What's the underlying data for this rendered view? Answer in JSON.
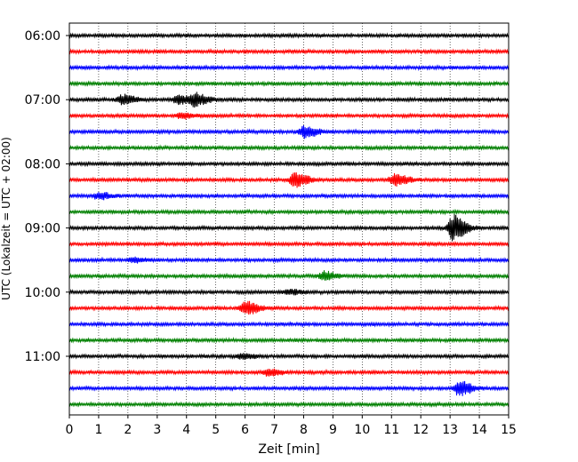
{
  "chart_data": {
    "type": "line",
    "title": "",
    "xlabel": "Zeit  [min]",
    "ylabel": "UTC (Lokalzeit = UTC + 02:00)",
    "xlim": [
      0,
      15
    ],
    "x_ticks": [
      0,
      1,
      2,
      3,
      4,
      5,
      6,
      7,
      8,
      9,
      10,
      11,
      12,
      13,
      14,
      15
    ],
    "x_tick_labels": [
      "0",
      "1",
      "2",
      "3",
      "4",
      "5",
      "6",
      "7",
      "8",
      "9",
      "10",
      "11",
      "12",
      "13",
      "14",
      "15"
    ],
    "y_tick_labels": [
      "06:00",
      "07:00",
      "08:00",
      "09:00",
      "10:00",
      "11:00"
    ],
    "x_grid": true,
    "trace_minutes": 15,
    "color_cycle": [
      "#000000",
      "#ff0000",
      "#0000ff",
      "#008000"
    ],
    "traces": [
      {
        "start": "06:00",
        "events": []
      },
      {
        "start": "06:15",
        "events": []
      },
      {
        "start": "06:30",
        "events": []
      },
      {
        "start": "06:45",
        "events": []
      },
      {
        "start": "07:00",
        "events": [
          {
            "minute": 1.8,
            "amplitude": 0.6
          },
          {
            "minute": 3.7,
            "amplitude": 0.5
          },
          {
            "minute": 4.3,
            "amplitude": 0.7
          }
        ]
      },
      {
        "start": "07:15",
        "events": [
          {
            "minute": 3.8,
            "amplitude": 0.3
          }
        ]
      },
      {
        "start": "07:30",
        "events": [
          {
            "minute": 8.0,
            "amplitude": 0.7
          }
        ]
      },
      {
        "start": "07:45",
        "events": []
      },
      {
        "start": "08:00",
        "events": []
      },
      {
        "start": "08:15",
        "events": [
          {
            "minute": 7.7,
            "amplitude": 0.9
          },
          {
            "minute": 11.1,
            "amplitude": 0.7
          }
        ]
      },
      {
        "start": "08:30",
        "events": [
          {
            "minute": 1.0,
            "amplitude": 0.4
          }
        ]
      },
      {
        "start": "08:45",
        "events": []
      },
      {
        "start": "09:00",
        "events": [
          {
            "minute": 13.1,
            "amplitude": 1.5
          }
        ]
      },
      {
        "start": "09:15",
        "events": []
      },
      {
        "start": "09:30",
        "events": [
          {
            "minute": 2.2,
            "amplitude": 0.3
          }
        ]
      },
      {
        "start": "09:45",
        "events": [
          {
            "minute": 8.7,
            "amplitude": 0.5
          }
        ]
      },
      {
        "start": "10:00",
        "events": [
          {
            "minute": 7.5,
            "amplitude": 0.3
          }
        ]
      },
      {
        "start": "10:15",
        "events": [
          {
            "minute": 6.0,
            "amplitude": 0.8
          }
        ]
      },
      {
        "start": "10:30",
        "events": []
      },
      {
        "start": "10:45",
        "events": []
      },
      {
        "start": "11:00",
        "events": [
          {
            "minute": 5.9,
            "amplitude": 0.3
          }
        ]
      },
      {
        "start": "11:15",
        "events": [
          {
            "minute": 6.8,
            "amplitude": 0.4
          }
        ]
      },
      {
        "start": "11:30",
        "events": [
          {
            "minute": 13.3,
            "amplitude": 0.9
          }
        ]
      },
      {
        "start": "11:45",
        "events": []
      }
    ]
  }
}
